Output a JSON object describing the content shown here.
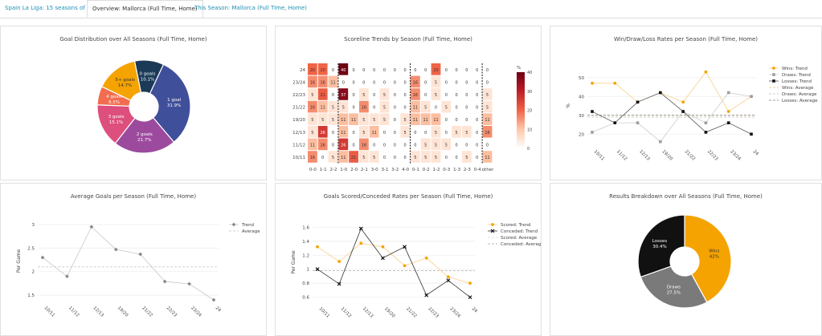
{
  "tabs": [
    {
      "label": "Spain La Liga: 15 seasons of data",
      "active": false
    },
    {
      "label": "Overview: Mallorca (Full Time, Home)",
      "active": true
    },
    {
      "label": "This Season: Mallorca (Full Time, Home)",
      "active": false
    }
  ],
  "colors": {
    "wins": "#f5a300",
    "draws": "#9e9e9e",
    "losses": "#111111",
    "tab_link": "#1f8fb4"
  },
  "chart_data": [
    {
      "id": "goal-dist",
      "type": "pie",
      "title": "Goal Distribution over All Seasons (Full Time, Home)",
      "labels": [
        "0 goals",
        "1 goal",
        "2 goals",
        "3 goals",
        "4 goals",
        "5+ goals"
      ],
      "values": [
        10.1,
        31.9,
        21.7,
        15.1,
        6.5,
        14.7
      ],
      "value_labels": [
        "10.1%",
        "31.9%",
        "21.7%",
        "15.1%",
        "6.5%",
        "14.7%"
      ],
      "colors": [
        "#1b3a57",
        "#3f4f9a",
        "#9c4a9e",
        "#dd4f7d",
        "#f26d4f",
        "#f5a300"
      ],
      "hole": true
    },
    {
      "id": "scoreline",
      "type": "heatmap",
      "title": "Scoreline Trends by Season (Full Time, Home)",
      "x": [
        "0-0",
        "1-1",
        "2-2",
        "1-0",
        "2-0",
        "2-1",
        "3-0",
        "3-1",
        "3-2",
        "4-0",
        "0-1",
        "0-2",
        "1-2",
        "0-3",
        "1-3",
        "2-3",
        "0-4",
        "other"
      ],
      "y": [
        "24",
        "23/24",
        "22/23",
        "21/22",
        "19/20",
        "12/13",
        "11/12",
        "10/11"
      ],
      "z": [
        [
          20,
          20,
          0,
          40,
          0,
          0,
          0,
          0,
          0,
          0,
          0,
          0,
          20,
          0,
          0,
          0,
          0,
          0
        ],
        [
          16,
          16,
          11,
          0,
          0,
          0,
          0,
          0,
          0,
          0,
          16,
          0,
          5,
          0,
          0,
          0,
          0,
          0
        ],
        [
          5,
          21,
          0,
          37,
          0,
          5,
          0,
          5,
          0,
          0,
          16,
          0,
          5,
          0,
          0,
          0,
          0,
          5
        ],
        [
          16,
          11,
          5,
          5,
          0,
          16,
          0,
          5,
          0,
          0,
          11,
          5,
          0,
          5,
          0,
          0,
          0,
          5
        ],
        [
          5,
          5,
          5,
          11,
          11,
          5,
          5,
          5,
          0,
          5,
          11,
          11,
          11,
          0,
          0,
          0,
          0,
          11
        ],
        [
          5,
          26,
          0,
          11,
          0,
          5,
          11,
          0,
          0,
          5,
          0,
          0,
          5,
          0,
          5,
          5,
          0,
          16
        ],
        [
          11,
          16,
          0,
          26,
          0,
          16,
          0,
          0,
          0,
          0,
          0,
          5,
          5,
          5,
          0,
          0,
          0,
          0
        ],
        [
          16,
          0,
          5,
          11,
          21,
          5,
          5,
          0,
          0,
          0,
          5,
          5,
          5,
          0,
          0,
          5,
          0,
          11
        ]
      ],
      "colorbar": {
        "label": "%",
        "ticks": [
          0,
          10,
          20,
          30,
          40
        ],
        "range": [
          0,
          40
        ]
      }
    },
    {
      "id": "wdl-rates",
      "type": "line",
      "title": "Win/Draw/Loss Rates per Season (Full Time, Home)",
      "x": [
        "10/11",
        "11/12",
        "12/13",
        "19/20",
        "21/22",
        "22/23",
        "23/24",
        "24"
      ],
      "ylabel": "%",
      "ylim": [
        15,
        55
      ],
      "yticks": [
        20,
        30,
        40,
        50
      ],
      "series": [
        {
          "name": "Wins: Trend",
          "values": [
            47,
            47,
            37,
            42,
            37,
            53,
            32,
            40
          ]
        },
        {
          "name": "Draws: Trend",
          "values": [
            21,
            26,
            26,
            16,
            32,
            26,
            42,
            40
          ]
        },
        {
          "name": "Losses: Trend",
          "values": [
            32,
            26,
            37,
            42,
            32,
            21,
            26,
            20
          ]
        }
      ],
      "averages": [
        {
          "name": "Wins: Average",
          "value": 30
        },
        {
          "name": "Draws: Average",
          "value": 29
        },
        {
          "name": "Losses: Average",
          "value": 30
        }
      ],
      "legend": "top-right"
    },
    {
      "id": "avg-goals",
      "type": "line",
      "title": "Average Goals per Season (Full Time, Home)",
      "x": [
        "10/11",
        "11/12",
        "12/13",
        "19/20",
        "21/22",
        "22/23",
        "23/24",
        "24"
      ],
      "ylabel": "Per Game",
      "ylim": [
        1.4,
        3.05
      ],
      "yticks": [
        1.5,
        2,
        2.5,
        3
      ],
      "ytick_labels": [
        "1.5",
        "2",
        "2.5",
        "3"
      ],
      "series": [
        {
          "name": "Trend",
          "values": [
            2.3,
            1.9,
            2.95,
            2.47,
            2.37,
            1.79,
            1.74,
            1.4
          ]
        }
      ],
      "averages": [
        {
          "name": "Average",
          "value": 2.1
        }
      ],
      "legend": "top-right"
    },
    {
      "id": "scored-conceded",
      "type": "line",
      "title": "Goals Scored/Conceded Rates per Season (Full Time, Home)",
      "x": [
        "10/11",
        "11/12",
        "12/13",
        "19/20",
        "21/22",
        "22/23",
        "23/24",
        "24"
      ],
      "ylabel": "Per Game",
      "ylim": [
        0.55,
        1.65
      ],
      "yticks": [
        0.6,
        0.8,
        1,
        1.2,
        1.4,
        1.6
      ],
      "ytick_labels": [
        "0.6",
        "0.8",
        "1",
        "1.2",
        "1.4",
        "1.6"
      ],
      "series": [
        {
          "name": "Scored: Trend",
          "values": [
            1.32,
            1.11,
            1.37,
            1.32,
            1.05,
            1.16,
            0.89,
            0.8
          ]
        },
        {
          "name": "Conceded: Trend",
          "values": [
            1.0,
            0.79,
            1.58,
            1.16,
            1.32,
            0.63,
            0.84,
            0.6
          ]
        }
      ],
      "averages": [
        {
          "name": "Scored: Average",
          "value": 0.98
        },
        {
          "name": "Conceded: Average",
          "value": 0.98
        }
      ],
      "legend": "top-right"
    },
    {
      "id": "results-breakdown",
      "type": "pie",
      "title": "Results Breakdown over All Seasons (Full Time, Home)",
      "labels": [
        "Wins",
        "Draws",
        "Losses"
      ],
      "values": [
        42,
        27.5,
        30.4
      ],
      "value_labels": [
        "42%",
        "27.5%",
        "30.4%"
      ],
      "colors": [
        "#f5a300",
        "#7a7a7a",
        "#111111"
      ],
      "hole": true
    }
  ]
}
